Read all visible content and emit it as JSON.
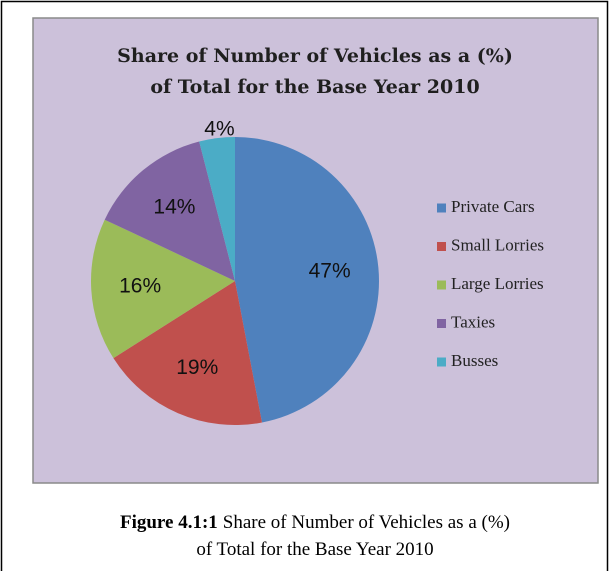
{
  "chart_data": {
    "type": "pie",
    "title": [
      "Share of Number of Vehicles as a (%)",
      "of Total for the Base Year 2010"
    ],
    "categories": [
      "Private Cars",
      "Small Lorries",
      "Large Lorries",
      "Taxies",
      "Busses"
    ],
    "values": [
      47,
      19,
      16,
      14,
      4
    ],
    "value_labels": [
      "47%",
      "19%",
      "16%",
      "14%",
      "4%"
    ],
    "colors": [
      "#4f81bd",
      "#c0504d",
      "#9bbb59",
      "#8064a2",
      "#4bacc6"
    ],
    "legend": "right"
  },
  "caption": {
    "label": "Figure 4.1:1",
    "lines": [
      "Share of Number of Vehicles as a (%)",
      "of Total for the Base Year 2010"
    ]
  }
}
